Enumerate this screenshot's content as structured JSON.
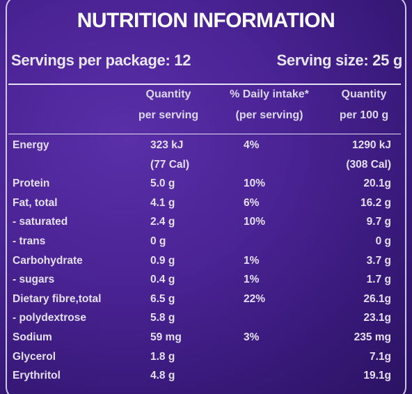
{
  "title": "NUTRITION INFORMATION",
  "servings_per_package": "Servings per package: 12",
  "serving_size": "Serving size: 25 g",
  "headers": {
    "quantity_serving": [
      "Quantity",
      "per serving"
    ],
    "daily_intake": [
      "% Daily intake*",
      "(per serving)"
    ],
    "quantity_100g": [
      "Quantity",
      "per 100 g"
    ]
  },
  "rows": [
    {
      "name": "Energy",
      "per_serving": "323 kJ",
      "daily": "4%",
      "per_100g": "1290 kJ"
    },
    {
      "name": "",
      "per_serving": "(77 Cal)",
      "daily": "",
      "per_100g": "(308 Cal)"
    },
    {
      "name": "Protein",
      "per_serving": "5.0 g",
      "daily": "10%",
      "per_100g": "20.1g"
    },
    {
      "name": "Fat, total",
      "per_serving": "4.1 g",
      "daily": "6%",
      "per_100g": "16.2 g"
    },
    {
      "name": " - saturated",
      "per_serving": "2.4 g",
      "daily": "10%",
      "per_100g": "9.7 g"
    },
    {
      "name": " - trans",
      "per_serving": "0 g",
      "daily": "",
      "per_100g": "0 g"
    },
    {
      "name": "Carbohydrate",
      "per_serving": "0.9 g",
      "daily": "1%",
      "per_100g": "3.7 g"
    },
    {
      "name": " - sugars",
      "per_serving": "0.4 g",
      "daily": "1%",
      "per_100g": "1.7 g"
    },
    {
      "name": "Dietary fibre,total",
      "per_serving": "6.5 g",
      "daily": "22%",
      "per_100g": "26.1g"
    },
    {
      "name": " - polydextrose",
      "per_serving": "5.8 g",
      "daily": "",
      "per_100g": "23.1g"
    },
    {
      "name": "Sodium",
      "per_serving": "59 mg",
      "daily": "3%",
      "per_100g": "235 mg"
    },
    {
      "name": "Glycerol",
      "per_serving": "1.8 g",
      "daily": "",
      "per_100g": "7.1g"
    },
    {
      "name": "Erythritol",
      "per_serving": "4.8 g",
      "daily": "",
      "per_100g": "19.1g"
    }
  ]
}
